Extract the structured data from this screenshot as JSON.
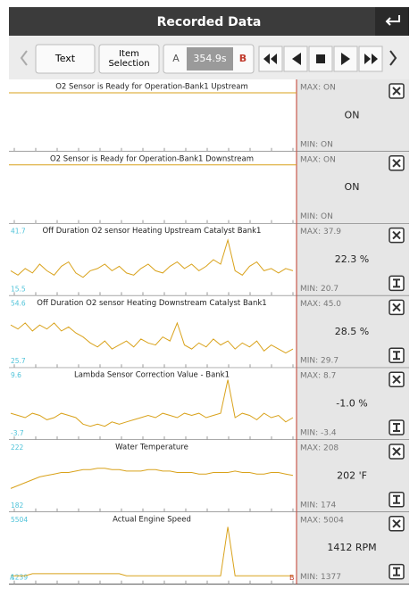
{
  "header": {
    "title": "Recorded Data"
  },
  "toolbar": {
    "text_button": "Text",
    "item_button": "Item Selection",
    "cursor_a": "A",
    "time": "354.9s",
    "cursor_b": "B"
  },
  "rows": [
    {
      "title": "O2 Sensor is Ready for Operation-Bank1 Upstream",
      "max": "MAX: ON",
      "value": "ON",
      "min": "MIN: ON"
    },
    {
      "title": "O2 Sensor is Ready for Operation-Bank1 Downstream",
      "max": "MAX: ON",
      "value": "ON",
      "min": "MIN: ON"
    },
    {
      "title": "Off Duration O2 sensor Heating Upstream Catalyst Bank1",
      "axis_top": 41.7,
      "axis_bottom": 15.5,
      "max": "MAX: 37.9",
      "value": "22.3 %",
      "min": "MIN: 20.7",
      "trace": [
        24,
        22,
        25,
        23,
        27,
        24,
        22,
        26,
        28,
        23,
        21,
        24,
        25,
        27,
        24,
        26,
        23,
        22,
        25,
        27,
        24,
        23,
        26,
        28,
        25,
        27,
        24,
        26,
        29,
        27,
        37.9,
        24,
        22,
        26,
        28,
        24,
        25,
        23,
        25,
        24
      ]
    },
    {
      "title": "Off Duration O2 sensor Heating Downstream Catalyst Bank1",
      "axis_top": 54.6,
      "axis_bottom": 25.7,
      "max": "MAX: 45.0",
      "value": "28.5 %",
      "min": "MIN: 29.7",
      "trace": [
        44,
        42,
        45,
        41,
        44,
        42,
        45,
        41,
        43,
        40,
        38,
        35,
        33,
        36,
        32,
        34,
        36,
        33,
        37,
        35,
        34,
        38,
        36,
        45,
        34,
        32,
        35,
        33,
        37,
        34,
        36,
        32,
        35,
        33,
        36,
        31,
        34,
        32,
        30,
        32
      ]
    },
    {
      "title": "Lambda Sensor Correction Value - Bank1",
      "axis_top": 9.6,
      "axis_bottom": -3.7,
      "max": "MAX: 8.7",
      "value": "-1.0 %",
      "min": "MIN: -3.4",
      "trace": [
        1,
        0.5,
        0,
        1,
        0.5,
        -0.5,
        0,
        1,
        0.5,
        0,
        -1.5,
        -2,
        -1.5,
        -2,
        -1,
        -1.5,
        -1,
        -0.5,
        0,
        0.5,
        0,
        1,
        0.5,
        0,
        1,
        0.5,
        1,
        0,
        0.5,
        1,
        8.7,
        0,
        1,
        0.5,
        -0.5,
        1,
        0,
        0.5,
        -1,
        0
      ]
    },
    {
      "title": "Water Temperature",
      "axis_top": 222,
      "axis_bottom": 182,
      "max": "MAX: 208",
      "value": "202 'F",
      "min": "MIN: 174",
      "trace": [
        194,
        196,
        198,
        200,
        202,
        203,
        204,
        205,
        205,
        206,
        207,
        207,
        208,
        208,
        207,
        207,
        206,
        206,
        206,
        207,
        207,
        206,
        206,
        205,
        205,
        205,
        204,
        204,
        205,
        205,
        205,
        206,
        205,
        205,
        204,
        204,
        205,
        205,
        204,
        203
      ]
    },
    {
      "title": "Actual Engine Speed",
      "axis_top": 5504,
      "axis_bottom": 1239,
      "max": "MAX: 5004",
      "value": "1412 RPM",
      "min": "MIN: 1377",
      "trace": [
        1400,
        1400,
        1400,
        1550,
        1550,
        1550,
        1550,
        1550,
        1550,
        1550,
        1550,
        1550,
        1550,
        1550,
        1550,
        1550,
        1400,
        1400,
        1400,
        1400,
        1400,
        1400,
        1400,
        1400,
        1400,
        1400,
        1400,
        1400,
        1400,
        1400,
        5004,
        1400,
        1400,
        1400,
        1400,
        1400,
        1400,
        1400,
        1400,
        1400
      ]
    }
  ]
}
